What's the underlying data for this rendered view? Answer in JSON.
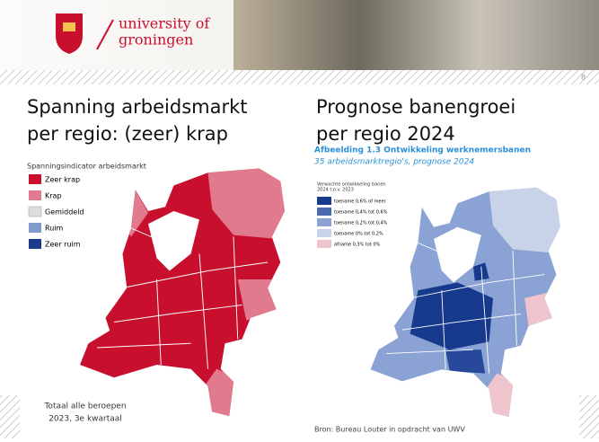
{
  "header": {
    "brand_line1": "university of",
    "brand_line2": "groningen",
    "page_number": "8"
  },
  "left": {
    "title_line1": "Spanning arbeidsmarkt",
    "title_line2": "per regio: (zeer) krap",
    "legend_title": "Spanningsindicator arbeidsmarkt",
    "legend": [
      "Zeer krap",
      "Krap",
      "Gemiddeld",
      "Ruim",
      "Zeer ruim"
    ],
    "note_line1": "Totaal alle beroepen",
    "note_line2": "2023, 3e kwartaal"
  },
  "right": {
    "title_line1": "Prognose banengroei",
    "title_line2": "per regio 2024",
    "figure_title": "Afbeelding 1.3 Ontwikkeling werknemersbanen",
    "figure_subtitle": "35 arbeidsmarktregio's, prognose 2024",
    "legend_title_line1": "Verwachte ontwikkeling banen",
    "legend_title_line2": "2024 t.o.v. 2023",
    "legend": [
      "toename 0,6% of meer",
      "toename 0,4% tot 0,6%",
      "toename 0,2% tot 0,4%",
      "toename 0% tot 0,2%",
      "afname 0,3% tot 0%"
    ],
    "source": "Bron: Bureau Louter in opdracht van UWV"
  }
}
